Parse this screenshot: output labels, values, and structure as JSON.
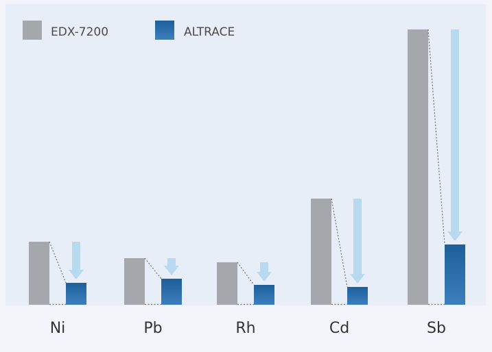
{
  "chart_data": {
    "type": "bar",
    "title": "",
    "xlabel": "",
    "ylabel": "",
    "categories": [
      "Ni",
      "Pb",
      "Rh",
      "Cd",
      "Sb"
    ],
    "series": [
      {
        "name": "EDX-7200",
        "values": [
          92,
          68,
          62,
          155,
          402
        ]
      },
      {
        "name": "ALTRACE",
        "values": [
          32,
          38,
          29,
          26,
          88
        ]
      }
    ],
    "ylim": [
      0,
      440
    ],
    "grid": false,
    "legend_position": "top-left",
    "annotation": "downward arrows indicating reduction from EDX-7200 to ALTRACE"
  },
  "colors": {
    "edx": "#a4a7ab",
    "altrace_top": "#1d5f9a",
    "altrace_bottom": "#3d7fbd",
    "arrow": "#b9d9ee",
    "plot_bg": "#e8eef8",
    "page_bg": "#f3f5fa"
  }
}
